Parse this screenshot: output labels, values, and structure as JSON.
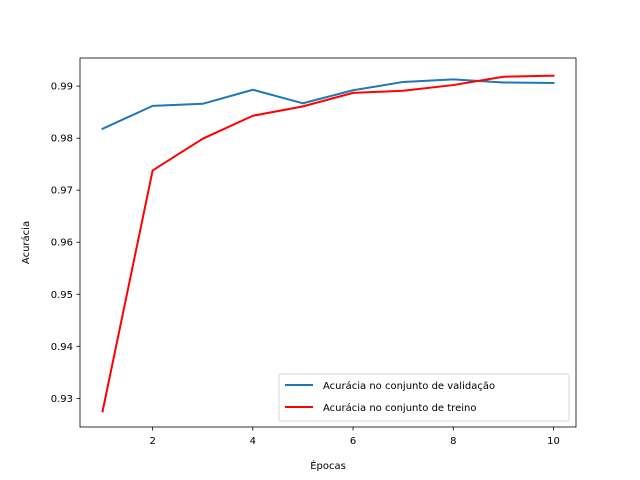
{
  "chart_data": {
    "type": "line",
    "title": "",
    "xlabel": "Épocas",
    "ylabel": "Acurácia",
    "xlim": [
      0.55,
      10.45
    ],
    "ylim": [
      0.9245,
      0.9954
    ],
    "xticks": [
      2,
      4,
      6,
      8,
      10
    ],
    "xtick_labels": [
      "2",
      "4",
      "6",
      "8",
      "10"
    ],
    "yticks": [
      0.93,
      0.94,
      0.95,
      0.96,
      0.97,
      0.98,
      0.99
    ],
    "ytick_labels": [
      "0.93",
      "0.94",
      "0.95",
      "0.96",
      "0.97",
      "0.98",
      "0.99"
    ],
    "grid": false,
    "legend_position": "lower-right",
    "x": [
      1,
      2,
      3,
      4,
      5,
      6,
      7,
      8,
      9,
      10
    ],
    "series": [
      {
        "name": "Acurácia no conjunto de validação",
        "color": "#1f77b4",
        "values": [
          0.9818,
          0.9862,
          0.9866,
          0.9893,
          0.9867,
          0.9892,
          0.9908,
          0.9913,
          0.9907,
          0.9906
        ]
      },
      {
        "name": "Acurácia no conjunto de treino",
        "color": "#ff0000",
        "values": [
          0.9275,
          0.9738,
          0.9799,
          0.9843,
          0.9861,
          0.9887,
          0.9891,
          0.9902,
          0.9918,
          0.992
        ]
      }
    ]
  }
}
